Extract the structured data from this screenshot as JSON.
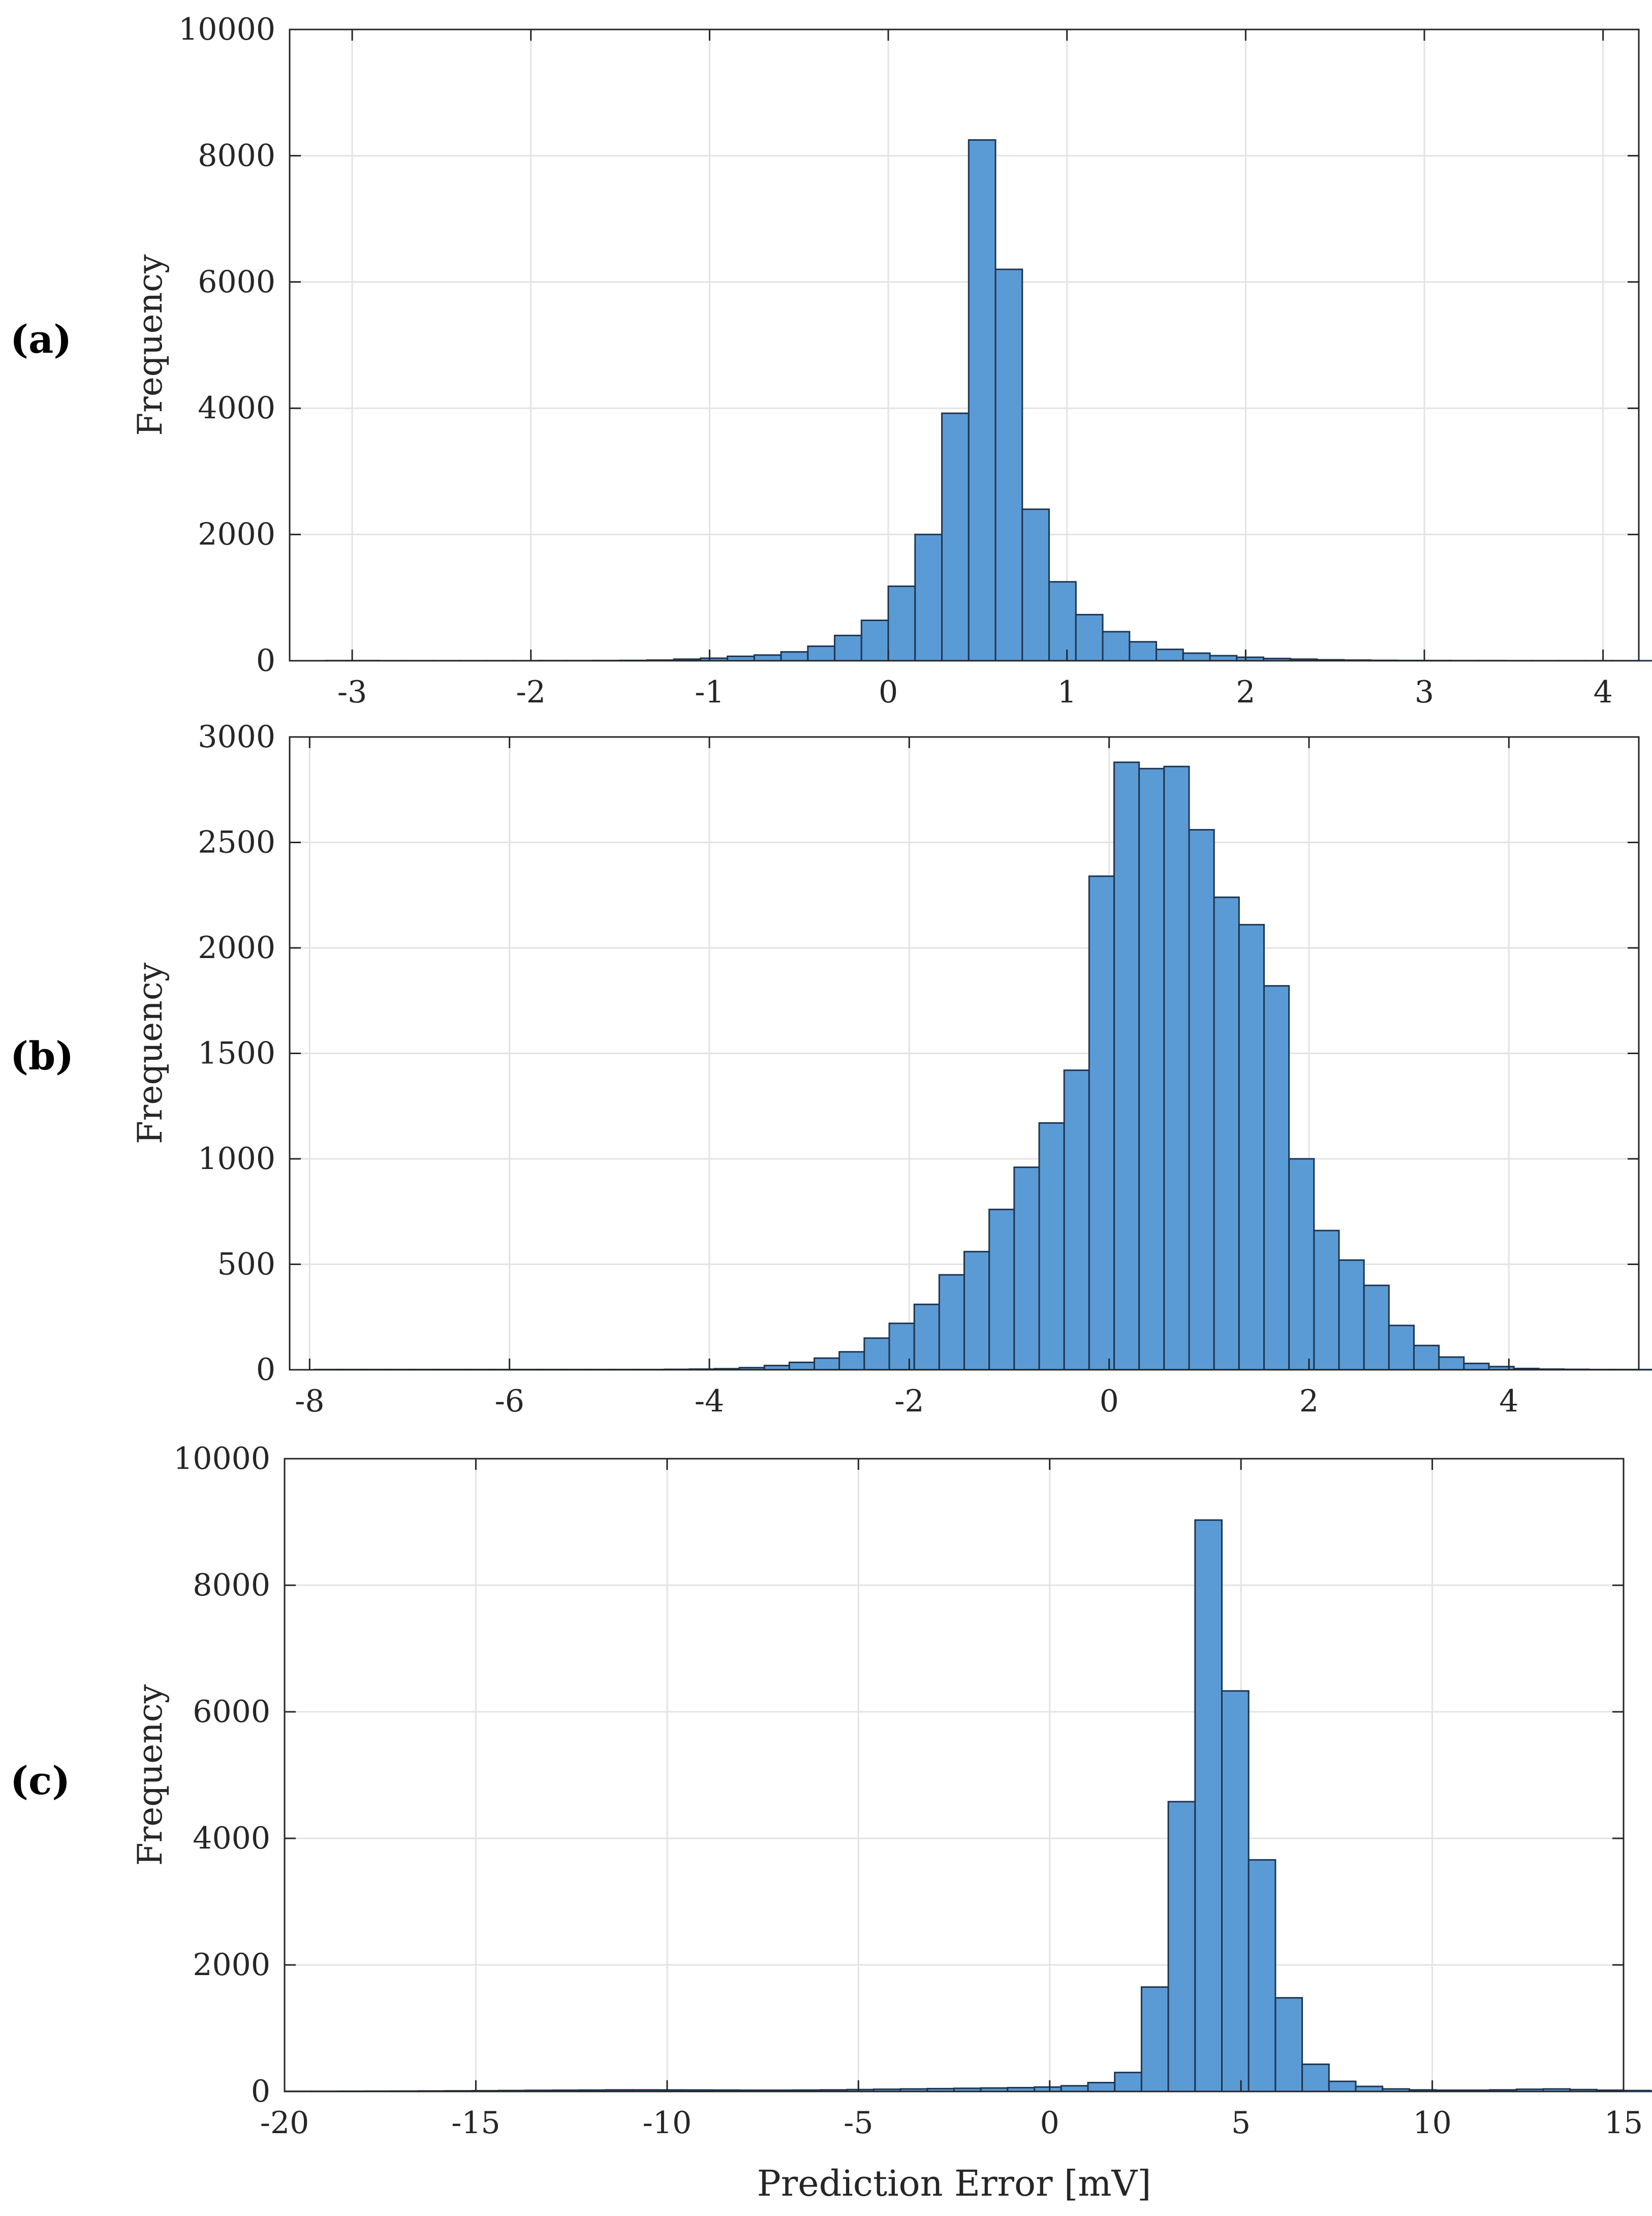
{
  "figure": {
    "bar_color": "#5b9bd5",
    "bar_edge_color": "#1f3550",
    "grid_color": "#e3e3e3",
    "axis_color": "#262626"
  },
  "chart_data": [
    {
      "type": "bar",
      "panel_label": "(a)",
      "xlabel": "",
      "ylabel": "Frequency",
      "xlim": [
        -3.35,
        4.2
      ],
      "ylim": [
        0,
        10000
      ],
      "xticks": [
        -3,
        -2,
        -1,
        0,
        1,
        2,
        3,
        4
      ],
      "yticks": [
        0,
        2000,
        4000,
        6000,
        8000,
        10000
      ],
      "xtick_labels": [
        "-3",
        "-2",
        "-1",
        "0",
        "1",
        "2",
        "3",
        "4"
      ],
      "ytick_labels": [
        "0",
        "2000",
        "4000",
        "6000",
        "8000",
        "10000"
      ],
      "grid": true,
      "bin_start": -3.15,
      "bin_width": 0.15,
      "values": [
        2,
        2,
        1,
        1,
        1,
        1,
        1,
        1,
        2,
        2,
        3,
        5,
        10,
        25,
        40,
        70,
        90,
        140,
        230,
        400,
        640,
        1180,
        2000,
        3920,
        8250,
        6200,
        2400,
        1250,
        730,
        460,
        300,
        180,
        120,
        80,
        55,
        35,
        25,
        15,
        10,
        6,
        4,
        3,
        2,
        2,
        1,
        1,
        1,
        1,
        1,
        1
      ]
    },
    {
      "type": "bar",
      "panel_label": "(b)",
      "xlabel": "",
      "ylabel": "Frequency",
      "xlim": [
        -8.2,
        5.3
      ],
      "ylim": [
        0,
        3000
      ],
      "xticks": [
        -8,
        -6,
        -4,
        -2,
        0,
        2,
        4
      ],
      "yticks": [
        0,
        500,
        1000,
        1500,
        2000,
        2500,
        3000
      ],
      "xtick_labels": [
        "-8",
        "-6",
        "-4",
        "-2",
        "0",
        "2",
        "4"
      ],
      "ytick_labels": [
        "0",
        "500",
        "1000",
        "1500",
        "2000",
        "2500",
        "3000"
      ],
      "grid": true,
      "bin_start": -7.95,
      "bin_width": 0.25,
      "values": [
        1,
        1,
        1,
        1,
        1,
        1,
        1,
        1,
        1,
        1,
        1,
        1,
        1,
        1,
        2,
        3,
        5,
        10,
        20,
        35,
        55,
        85,
        150,
        220,
        310,
        450,
        560,
        760,
        960,
        1170,
        1420,
        2340,
        2880,
        2850,
        2860,
        2560,
        2240,
        2110,
        1820,
        1000,
        660,
        520,
        400,
        210,
        115,
        60,
        30,
        15,
        6,
        3,
        2,
        1,
        1,
        1
      ]
    },
    {
      "type": "bar",
      "panel_label": "(c)",
      "xlabel": "Prediction Error [mV]",
      "ylabel": "Frequency",
      "xlim": [
        -20,
        15
      ],
      "ylim": [
        0,
        10000
      ],
      "xticks": [
        -20,
        -15,
        -10,
        -5,
        0,
        5,
        10,
        15
      ],
      "yticks": [
        0,
        2000,
        4000,
        6000,
        8000,
        10000
      ],
      "xtick_labels": [
        "-20",
        "-15",
        "-10",
        "-5",
        "0",
        "5",
        "10",
        "15"
      ],
      "ytick_labels": [
        "0",
        "2000",
        "4000",
        "6000",
        "8000",
        "10000"
      ],
      "grid": true,
      "bin_start": -20,
      "bin_width": 0.7,
      "values": [
        3,
        3,
        4,
        5,
        6,
        8,
        10,
        12,
        15,
        18,
        20,
        22,
        25,
        25,
        24,
        23,
        22,
        20,
        20,
        22,
        25,
        30,
        35,
        40,
        45,
        50,
        55,
        60,
        70,
        90,
        140,
        300,
        1650,
        4580,
        9030,
        6330,
        3660,
        1480,
        430,
        160,
        80,
        40,
        25,
        20,
        20,
        25,
        35,
        40,
        30,
        20,
        15,
        10,
        8,
        5,
        3,
        3,
        3,
        2,
        2,
        2
      ]
    }
  ]
}
